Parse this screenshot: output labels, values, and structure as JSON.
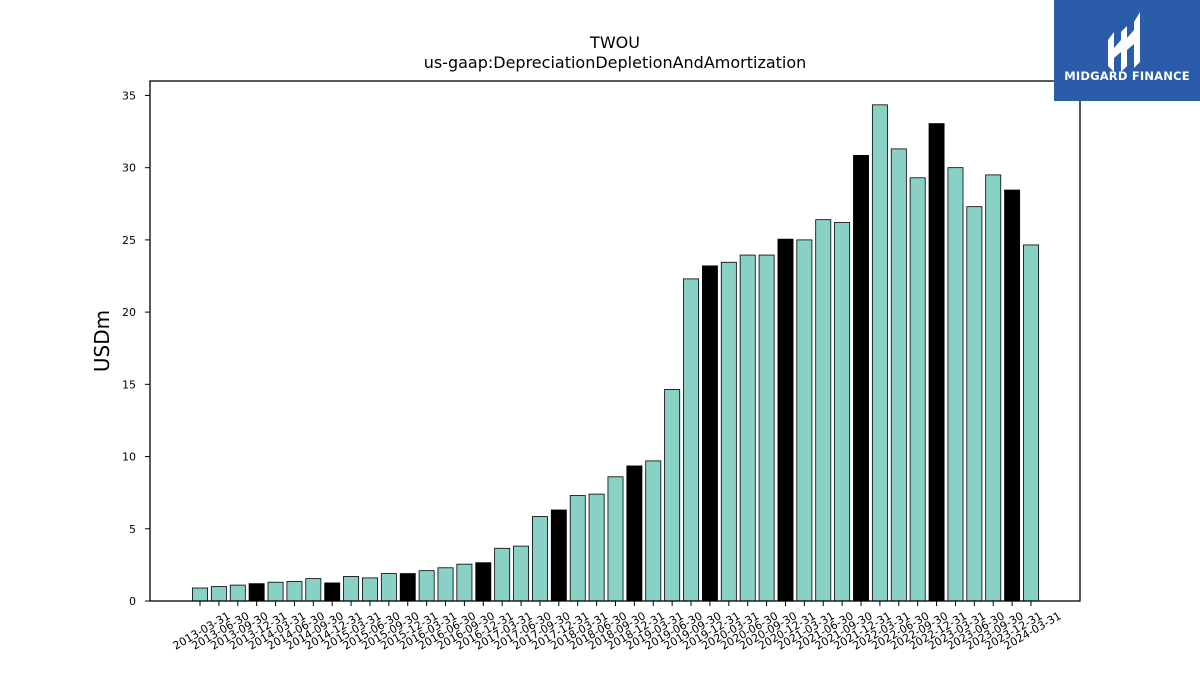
{
  "logo": {
    "text": "MIDGARD FINANCE",
    "bg_color": "#2a5caa"
  },
  "chart_data": {
    "type": "bar",
    "title": "TWOU",
    "subtitle": "us-gaap:DepreciationDepletionAndAmortization",
    "xlabel": "",
    "ylabel": "USDm",
    "ylim": [
      0,
      36
    ],
    "yticks": [
      0,
      5,
      10,
      15,
      20,
      25,
      30,
      35
    ],
    "grid": false,
    "colors": {
      "quarter": "#88d1c4",
      "fiscal_year_end": "#000000"
    },
    "categories": [
      "2013-03-31",
      "2013-06-30",
      "2013-09-30",
      "2013-12-31",
      "2014-03-31",
      "2014-06-30",
      "2014-09-30",
      "2014-12-31",
      "2015-03-31",
      "2015-06-30",
      "2015-09-30",
      "2015-12-31",
      "2016-03-31",
      "2016-06-30",
      "2016-09-30",
      "2016-12-31",
      "2017-03-31",
      "2017-06-30",
      "2017-09-30",
      "2017-12-31",
      "2018-03-31",
      "2018-06-30",
      "2018-09-30",
      "2018-12-31",
      "2019-03-31",
      "2019-06-30",
      "2019-09-30",
      "2019-12-31",
      "2020-03-31",
      "2020-06-30",
      "2020-09-30",
      "2020-12-31",
      "2021-03-31",
      "2021-06-30",
      "2021-09-30",
      "2021-12-31",
      "2022-03-31",
      "2022-06-30",
      "2022-09-30",
      "2022-12-31",
      "2023-03-31",
      "2023-06-30",
      "2023-09-30",
      "2023-12-31",
      "2024-03-31"
    ],
    "values": [
      0.9,
      1.0,
      1.1,
      1.2,
      1.3,
      1.35,
      1.55,
      1.25,
      1.7,
      1.6,
      1.9,
      1.9,
      2.1,
      2.3,
      2.55,
      2.65,
      3.65,
      3.8,
      5.85,
      6.3,
      7.3,
      7.4,
      8.6,
      9.35,
      9.7,
      14.65,
      22.3,
      23.2,
      23.45,
      23.95,
      23.95,
      25.05,
      25.0,
      26.4,
      26.2,
      30.85,
      34.35,
      31.3,
      29.3,
      33.05,
      30.0,
      27.3,
      29.5,
      28.45,
      24.65
    ],
    "highlight": [
      false,
      false,
      false,
      true,
      false,
      false,
      false,
      true,
      false,
      false,
      false,
      true,
      false,
      false,
      false,
      true,
      false,
      false,
      false,
      true,
      false,
      false,
      false,
      true,
      false,
      false,
      false,
      true,
      false,
      false,
      false,
      true,
      false,
      false,
      false,
      true,
      false,
      false,
      false,
      true,
      false,
      false,
      false,
      true,
      false
    ]
  }
}
